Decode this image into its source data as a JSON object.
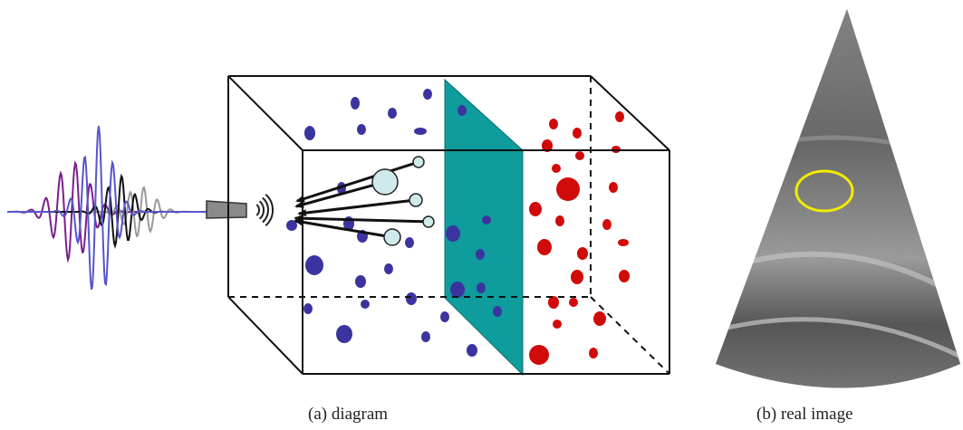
{
  "captions": {
    "diagram": "(a)  diagram",
    "real_image": "(b)  real image"
  },
  "colors": {
    "scatterer_left": "#3b34a0",
    "scatterer_right": "#d10a0a",
    "plane": "#0e9c9c",
    "probe": "#8a8a8a",
    "echo_bubble": "#cfe9ec",
    "roi_circle": "#f2ec00",
    "wave_purple": "#7a1f8f",
    "wave_blue": "#5656cc",
    "wave_black": "#111111",
    "wave_gray": "#9a9a9a"
  },
  "icons": [
    "probe-icon",
    "signal-arcs-icon",
    "echo-arrows",
    "ultrasound-sector-icon"
  ]
}
